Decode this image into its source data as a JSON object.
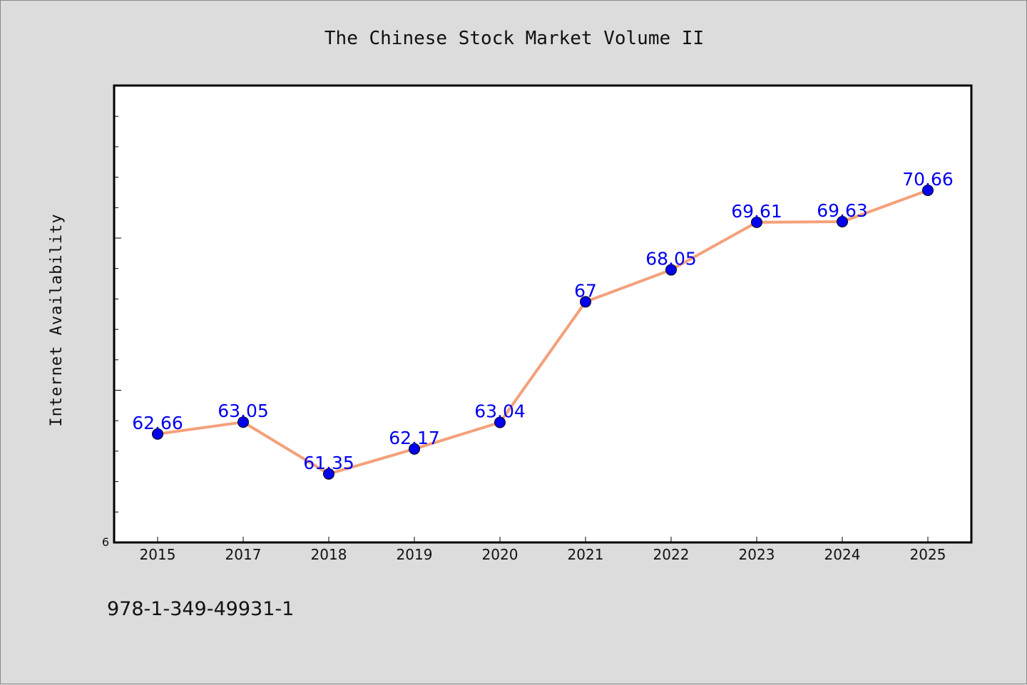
{
  "chart_data": {
    "type": "line",
    "title": "The Chinese Stock Market Volume II",
    "xlabel": "",
    "ylabel": "Internet Availability",
    "categories": [
      "2015",
      "2017",
      "2018",
      "2019",
      "2020",
      "2021",
      "2022",
      "2023",
      "2024",
      "2025"
    ],
    "series": [
      {
        "values": [
          62.66,
          63.05,
          61.35,
          62.17,
          63.04,
          67,
          68.05,
          69.61,
          69.63,
          70.66
        ],
        "data_labels": [
          "62.66",
          "63.05",
          "61.35",
          "62.17",
          "63.04",
          "67",
          "68.05",
          "69.61",
          "69.63",
          "70.66"
        ],
        "line_color": "#f4a07a",
        "marker_color": "#0000ee"
      }
    ],
    "ylim": [
      59.1,
      74.1
    ],
    "y_tick_labels": [
      "6"
    ],
    "grid": false,
    "legend": "none"
  },
  "footnote": "978-1-349-49931-1",
  "colors": {
    "background": "#dcdcdc",
    "plot_background": "#ffffff",
    "line": "#f4a07a",
    "marker": "#0000ee",
    "label": "#0000ee"
  }
}
